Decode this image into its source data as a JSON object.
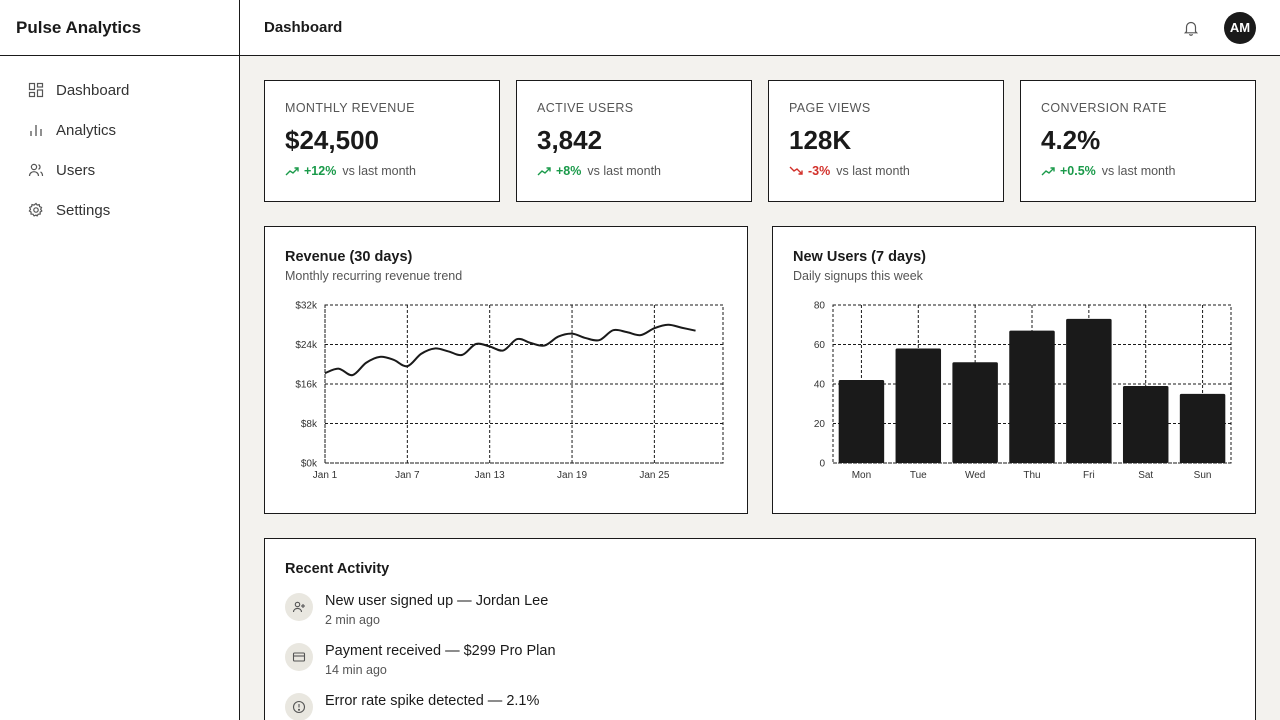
{
  "app": {
    "brand": "Pulse Analytics"
  },
  "sidebar": {
    "items": [
      {
        "label": "Dashboard",
        "icon": "dashboard-icon"
      },
      {
        "label": "Analytics",
        "icon": "bar-chart-icon"
      },
      {
        "label": "Users",
        "icon": "users-icon"
      },
      {
        "label": "Settings",
        "icon": "gear-icon"
      }
    ]
  },
  "topbar": {
    "title": "Dashboard",
    "bell_icon": "bell-icon",
    "avatar_initials": "AM"
  },
  "kpis": [
    {
      "label": "MONTHLY REVENUE",
      "value": "$24,500",
      "delta": "+12%",
      "trend": "up",
      "suffix": "vs last month"
    },
    {
      "label": "ACTIVE USERS",
      "value": "3,842",
      "delta": "+8%",
      "trend": "up",
      "suffix": "vs last month"
    },
    {
      "label": "PAGE VIEWS",
      "value": "128K",
      "delta": "-3%",
      "trend": "down",
      "suffix": "vs last month"
    },
    {
      "label": "CONVERSION RATE",
      "value": "4.2%",
      "delta": "+0.5%",
      "trend": "up",
      "suffix": "vs last month"
    }
  ],
  "colors": {
    "accent": "#1a1a1a",
    "positive": "#1a9a4a",
    "negative": "#d2302a",
    "background": "#f3f2ee"
  },
  "revenue_chart": {
    "title": "Revenue (30 days)",
    "subtitle": "Monthly recurring revenue trend"
  },
  "users_chart": {
    "title": "New Users (7 days)",
    "subtitle": "Daily signups this week"
  },
  "chart_data": [
    {
      "type": "line",
      "title": "Revenue (30 days)",
      "subtitle": "Monthly recurring revenue trend",
      "x_tick_labels": [
        "Jan 1",
        "Jan 7",
        "Jan 13",
        "Jan 19",
        "Jan 25"
      ],
      "y_tick_labels": [
        "$0k",
        "$8k",
        "$16k",
        "$24k",
        "$32k"
      ],
      "ylim": [
        0,
        32000
      ],
      "grid": true,
      "x": [
        1,
        2,
        3,
        4,
        5,
        6,
        7,
        8,
        9,
        10,
        11,
        12,
        13,
        14,
        15,
        16,
        17,
        18,
        19,
        20,
        21,
        22,
        23,
        24,
        25,
        26,
        27,
        28
      ],
      "values": [
        18200,
        19100,
        17800,
        20300,
        21500,
        20900,
        19600,
        22100,
        23200,
        22600,
        21900,
        24100,
        23600,
        22800,
        25100,
        24300,
        23800,
        25600,
        26200,
        25300,
        24900,
        26900,
        26500,
        25900,
        27300,
        28000,
        27400,
        26800
      ]
    },
    {
      "type": "bar",
      "title": "New Users (7 days)",
      "subtitle": "Daily signups this week",
      "categories": [
        "Mon",
        "Tue",
        "Wed",
        "Thu",
        "Fri",
        "Sat",
        "Sun"
      ],
      "values": [
        42,
        58,
        51,
        67,
        73,
        39,
        35
      ],
      "y_tick_labels": [
        "0",
        "20",
        "40",
        "60",
        "80"
      ],
      "ylim": [
        0,
        80
      ],
      "grid": true
    }
  ],
  "activity": {
    "title": "Recent Activity",
    "items": [
      {
        "text": "New user signed up — Jordan Lee",
        "time": "2 min ago",
        "icon": "user-plus-icon"
      },
      {
        "text": "Payment received — $299 Pro Plan",
        "time": "14 min ago",
        "icon": "credit-card-icon"
      },
      {
        "text": "Error rate spike detected — 2.1%",
        "time": "",
        "icon": "alert-circle-icon"
      }
    ]
  }
}
